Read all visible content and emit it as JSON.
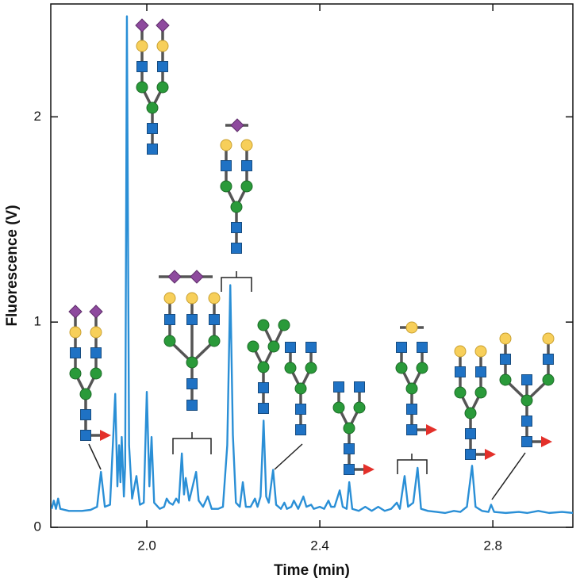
{
  "chart_data": {
    "type": "line",
    "x_label": "Time (min)",
    "y_label": "Fluorescence (V)",
    "xlim": [
      1.778,
      2.985
    ],
    "ylim": [
      0,
      2.55
    ],
    "xticks": [
      {
        "value": 2.0,
        "label": "2.0"
      },
      2.4,
      2.8
    ],
    "yticks": [
      0,
      1,
      2
    ],
    "grid": false,
    "color": "#2a8fd6",
    "x": [
      1.78,
      1.785,
      1.79,
      1.795,
      1.8,
      1.82,
      1.85,
      1.87,
      1.885,
      1.894,
      1.903,
      1.915,
      1.927,
      1.932,
      1.936,
      1.939,
      1.942,
      1.947,
      1.95,
      1.954,
      1.959,
      1.966,
      1.976,
      1.984,
      1.993,
      2.0,
      2.006,
      2.011,
      2.017,
      2.03,
      2.04,
      2.046,
      2.052,
      2.06,
      2.068,
      2.074,
      2.081,
      2.086,
      2.09,
      2.098,
      2.106,
      2.114,
      2.12,
      2.13,
      2.141,
      2.15,
      2.165,
      2.176,
      2.186,
      2.193,
      2.199,
      2.206,
      2.215,
      2.222,
      2.229,
      2.24,
      2.25,
      2.256,
      2.263,
      2.27,
      2.276,
      2.282,
      2.292,
      2.299,
      2.31,
      2.318,
      2.324,
      2.334,
      2.34,
      2.35,
      2.362,
      2.369,
      2.38,
      2.386,
      2.4,
      2.41,
      2.42,
      2.426,
      2.434,
      2.446,
      2.453,
      2.462,
      2.468,
      2.475,
      2.49,
      2.505,
      2.52,
      2.535,
      2.55,
      2.565,
      2.578,
      2.585,
      2.596,
      2.604,
      2.616,
      2.626,
      2.634,
      2.65,
      2.67,
      2.69,
      2.71,
      2.725,
      2.74,
      2.752,
      2.76,
      2.775,
      2.79,
      2.796,
      2.803,
      2.83,
      2.86,
      2.88,
      2.905,
      2.93,
      2.96,
      2.985
    ],
    "values": [
      0.09,
      0.13,
      0.09,
      0.14,
      0.09,
      0.08,
      0.08,
      0.085,
      0.1,
      0.27,
      0.1,
      0.11,
      0.65,
      0.2,
      0.4,
      0.22,
      0.44,
      0.15,
      0.3,
      2.49,
      0.4,
      0.14,
      0.25,
      0.11,
      0.12,
      0.66,
      0.2,
      0.44,
      0.12,
      0.09,
      0.1,
      0.14,
      0.12,
      0.11,
      0.14,
      0.12,
      0.36,
      0.16,
      0.24,
      0.13,
      0.2,
      0.27,
      0.13,
      0.1,
      0.15,
      0.09,
      0.09,
      0.1,
      0.4,
      1.18,
      0.45,
      0.12,
      0.1,
      0.22,
      0.1,
      0.1,
      0.14,
      0.1,
      0.15,
      0.52,
      0.15,
      0.12,
      0.28,
      0.11,
      0.09,
      0.12,
      0.09,
      0.1,
      0.13,
      0.09,
      0.15,
      0.1,
      0.11,
      0.09,
      0.1,
      0.09,
      0.13,
      0.1,
      0.1,
      0.18,
      0.1,
      0.09,
      0.22,
      0.09,
      0.08,
      0.1,
      0.08,
      0.1,
      0.08,
      0.09,
      0.12,
      0.09,
      0.25,
      0.1,
      0.12,
      0.29,
      0.09,
      0.08,
      0.075,
      0.07,
      0.08,
      0.075,
      0.1,
      0.3,
      0.1,
      0.08,
      0.075,
      0.11,
      0.075,
      0.07,
      0.075,
      0.07,
      0.08,
      0.07,
      0.075,
      0.07
    ]
  }
}
